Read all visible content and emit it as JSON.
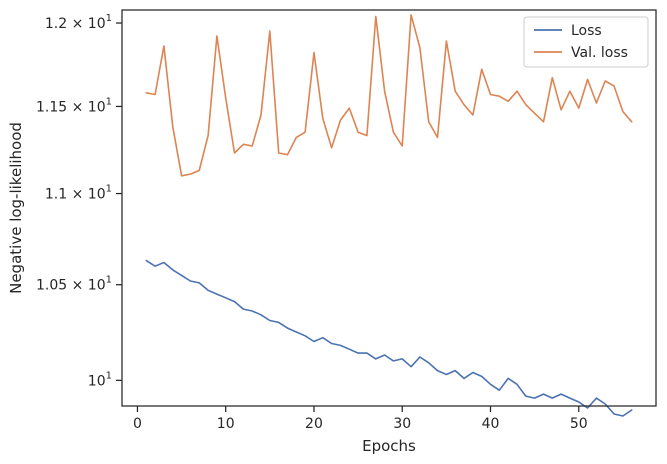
{
  "chart_data": {
    "type": "line",
    "xlabel": "Epochs",
    "ylabel": "Negative log-likelihood",
    "xlim": [
      -1.75,
      58.75
    ],
    "ylim": [
      9.87,
      12.08
    ],
    "y_scale": "log",
    "legend_position": "top-right",
    "x_ticks": [
      {
        "value": 0,
        "label": "0"
      },
      {
        "value": 10,
        "label": "10"
      },
      {
        "value": 20,
        "label": "20"
      },
      {
        "value": 30,
        "label": "30"
      },
      {
        "value": 40,
        "label": "40"
      },
      {
        "value": 50,
        "label": "50"
      }
    ],
    "y_ticks": [
      {
        "value": 10.0,
        "base": "10",
        "exp": "1",
        "mult": ""
      },
      {
        "value": 10.5,
        "base": "10",
        "exp": "1",
        "mult": "1.05 × "
      },
      {
        "value": 11.0,
        "base": "10",
        "exp": "1",
        "mult": "1.1 × "
      },
      {
        "value": 11.5,
        "base": "10",
        "exp": "1",
        "mult": "1.15 × "
      },
      {
        "value": 12.0,
        "base": "10",
        "exp": "1",
        "mult": "1.2 × "
      }
    ],
    "series": [
      {
        "name": "Loss",
        "color": "#4c72b0",
        "x": [
          1,
          2,
          3,
          4,
          5,
          6,
          7,
          8,
          9,
          10,
          11,
          12,
          13,
          14,
          15,
          16,
          17,
          18,
          19,
          20,
          21,
          22,
          23,
          24,
          25,
          26,
          27,
          28,
          29,
          30,
          31,
          32,
          33,
          34,
          35,
          36,
          37,
          38,
          39,
          40,
          41,
          42,
          43,
          44,
          45,
          46,
          47,
          48,
          49,
          50,
          51,
          52,
          53,
          54,
          55,
          56
        ],
        "y": [
          10.63,
          10.6,
          10.62,
          10.58,
          10.55,
          10.52,
          10.51,
          10.47,
          10.45,
          10.43,
          10.41,
          10.37,
          10.36,
          10.34,
          10.31,
          10.3,
          10.27,
          10.25,
          10.23,
          10.2,
          10.22,
          10.19,
          10.18,
          10.16,
          10.14,
          10.14,
          10.11,
          10.13,
          10.1,
          10.11,
          10.07,
          10.12,
          10.09,
          10.05,
          10.03,
          10.05,
          10.01,
          10.04,
          10.02,
          9.98,
          9.95,
          10.01,
          9.98,
          9.92,
          9.91,
          9.93,
          9.91,
          9.93,
          9.91,
          9.89,
          9.86,
          9.91,
          9.88,
          9.83,
          9.82,
          9.85
        ]
      },
      {
        "name": "Val. loss",
        "color": "#dd8452",
        "x": [
          1,
          2,
          3,
          4,
          5,
          6,
          7,
          8,
          9,
          10,
          11,
          12,
          13,
          14,
          15,
          16,
          17,
          18,
          19,
          20,
          21,
          22,
          23,
          24,
          25,
          26,
          27,
          28,
          29,
          30,
          31,
          32,
          33,
          34,
          35,
          36,
          37,
          38,
          39,
          40,
          41,
          42,
          43,
          44,
          45,
          46,
          47,
          48,
          49,
          50,
          51,
          52,
          53,
          54,
          55,
          56
        ],
        "y": [
          11.58,
          11.57,
          11.86,
          11.38,
          11.1,
          11.11,
          11.13,
          11.33,
          11.92,
          11.55,
          11.23,
          11.28,
          11.27,
          11.45,
          11.95,
          11.23,
          11.22,
          11.32,
          11.35,
          11.82,
          11.43,
          11.26,
          11.42,
          11.49,
          11.35,
          11.33,
          12.04,
          11.59,
          11.35,
          11.27,
          12.05,
          11.85,
          11.41,
          11.32,
          11.89,
          11.59,
          11.51,
          11.45,
          11.72,
          11.57,
          11.56,
          11.53,
          11.59,
          11.51,
          11.46,
          11.41,
          11.67,
          11.48,
          11.59,
          11.49,
          11.66,
          11.52,
          11.65,
          11.62,
          11.47,
          11.41
        ]
      }
    ]
  }
}
